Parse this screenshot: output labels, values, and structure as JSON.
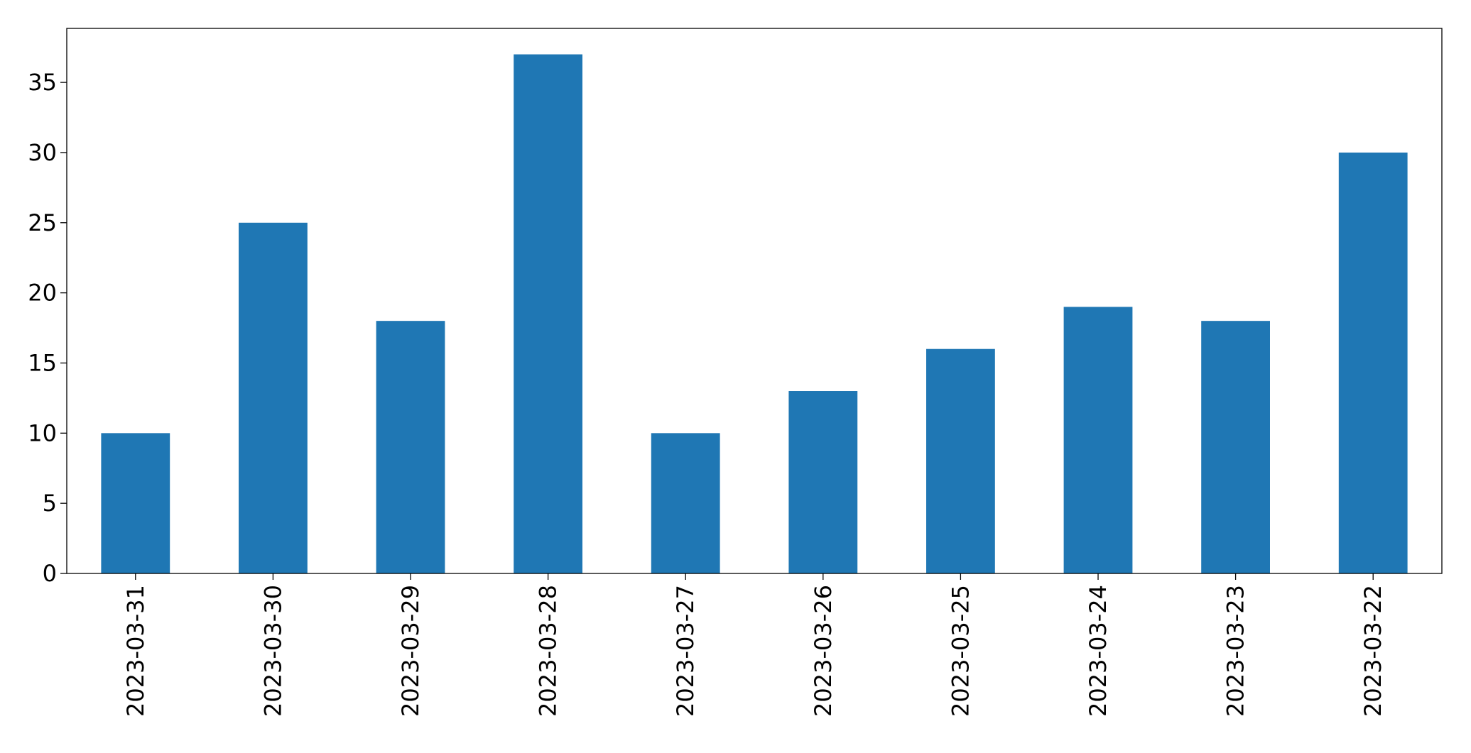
{
  "chart_data": {
    "type": "bar",
    "categories": [
      "2023-03-31",
      "2023-03-30",
      "2023-03-29",
      "2023-03-28",
      "2023-03-27",
      "2023-03-26",
      "2023-03-25",
      "2023-03-24",
      "2023-03-23",
      "2023-03-22"
    ],
    "values": [
      10,
      25,
      18,
      37,
      10,
      13,
      16,
      19,
      18,
      30
    ],
    "color": "#1f77b4",
    "ylim": [
      0,
      38.85
    ],
    "yticks": [
      0,
      5,
      10,
      15,
      20,
      25,
      30,
      35
    ],
    "grid": false
  }
}
